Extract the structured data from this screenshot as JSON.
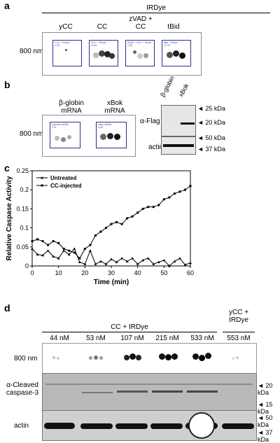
{
  "panel_a": {
    "label": "a",
    "header": "IRDye",
    "channel": "800 nm",
    "columns": [
      {
        "label": "yCC",
        "caption": "YCC + IRDye\n1.05"
      },
      {
        "label": "CC",
        "caption": "HCC + IRDye\n13.61"
      },
      {
        "label": "zVAD +\nCC",
        "caption": "ZVAD + HCC + IRDye\n2.35"
      },
      {
        "label": "tBid",
        "caption": "tBid + IRDye\n17.78"
      }
    ]
  },
  "panel_b": {
    "label": "b",
    "channel": "800 nm",
    "columns": [
      {
        "label": "β-globin\nmRNA",
        "caption": "β-globin mRNA\n1.11"
      },
      {
        "label": "xBok\nmRNA",
        "caption": "xBok mRNA\n4.96"
      }
    ],
    "blot_lanes": [
      "β-globin",
      "xBok"
    ],
    "blots": [
      {
        "label": "α-Flag",
        "markers": [
          "◄ 25 kDa",
          "◄ 20 kDa"
        ]
      },
      {
        "label": "actin",
        "markers": [
          "◄ 50 kDa",
          "◄ 37 kDa"
        ]
      }
    ]
  },
  "panel_c": {
    "label": "c"
  },
  "chart_data": {
    "type": "line",
    "title": "",
    "xlabel": "Time (min)",
    "ylabel": "Relative Caspase Activity",
    "xlim": [
      0,
      60
    ],
    "ylim": [
      0,
      0.25
    ],
    "xticks": [
      0,
      10,
      20,
      30,
      40,
      50,
      60
    ],
    "yticks": [
      0,
      0.05,
      0.1,
      0.15,
      0.2,
      0.25
    ],
    "x": [
      0,
      2,
      4,
      6,
      8,
      10,
      12,
      14,
      16,
      18,
      20,
      22,
      24,
      26,
      28,
      30,
      32,
      34,
      36,
      38,
      40,
      42,
      44,
      46,
      48,
      50,
      52,
      54,
      56,
      58,
      60
    ],
    "legend_position": "top-left",
    "series": [
      {
        "name": "Untreated",
        "marker": "triangle",
        "values": [
          0.045,
          0.03,
          0.028,
          0.04,
          0.025,
          0.02,
          0.04,
          0.03,
          0.045,
          0.01,
          0.005,
          0.04,
          0.005,
          0.012,
          0.005,
          0.018,
          0.01,
          0.02,
          0.012,
          0.02,
          0.005,
          0.015,
          0.02,
          0.005,
          0.01,
          0.015,
          0.0,
          0.012,
          0.02,
          0.003,
          0.008
        ]
      },
      {
        "name": "CC-injected",
        "marker": "square",
        "values": [
          0.065,
          0.07,
          0.065,
          0.055,
          0.065,
          0.06,
          0.045,
          0.04,
          0.035,
          0.02,
          0.045,
          0.055,
          0.08,
          0.09,
          0.1,
          0.11,
          0.115,
          0.11,
          0.125,
          0.13,
          0.14,
          0.15,
          0.155,
          0.155,
          0.16,
          0.175,
          0.18,
          0.19,
          0.195,
          0.2,
          0.21
        ]
      }
    ]
  },
  "panel_d": {
    "label": "d",
    "group_header": "CC + IRDye",
    "control_header": "yCC +\nIRDye",
    "lanes": [
      "44 nM",
      "53 nM",
      "107 nM",
      "215 nM",
      "533 nM",
      "553 nM"
    ],
    "rows": [
      {
        "label": "800 nm",
        "markers": []
      },
      {
        "label": "α-Cleaved\ncaspase-3",
        "markers": [
          "◄ 20 kDa",
          "◄ 15 kDa"
        ]
      },
      {
        "label": "actin",
        "markers": [
          "◄ 50 kDa",
          "◄ 37 kDa"
        ]
      }
    ]
  }
}
